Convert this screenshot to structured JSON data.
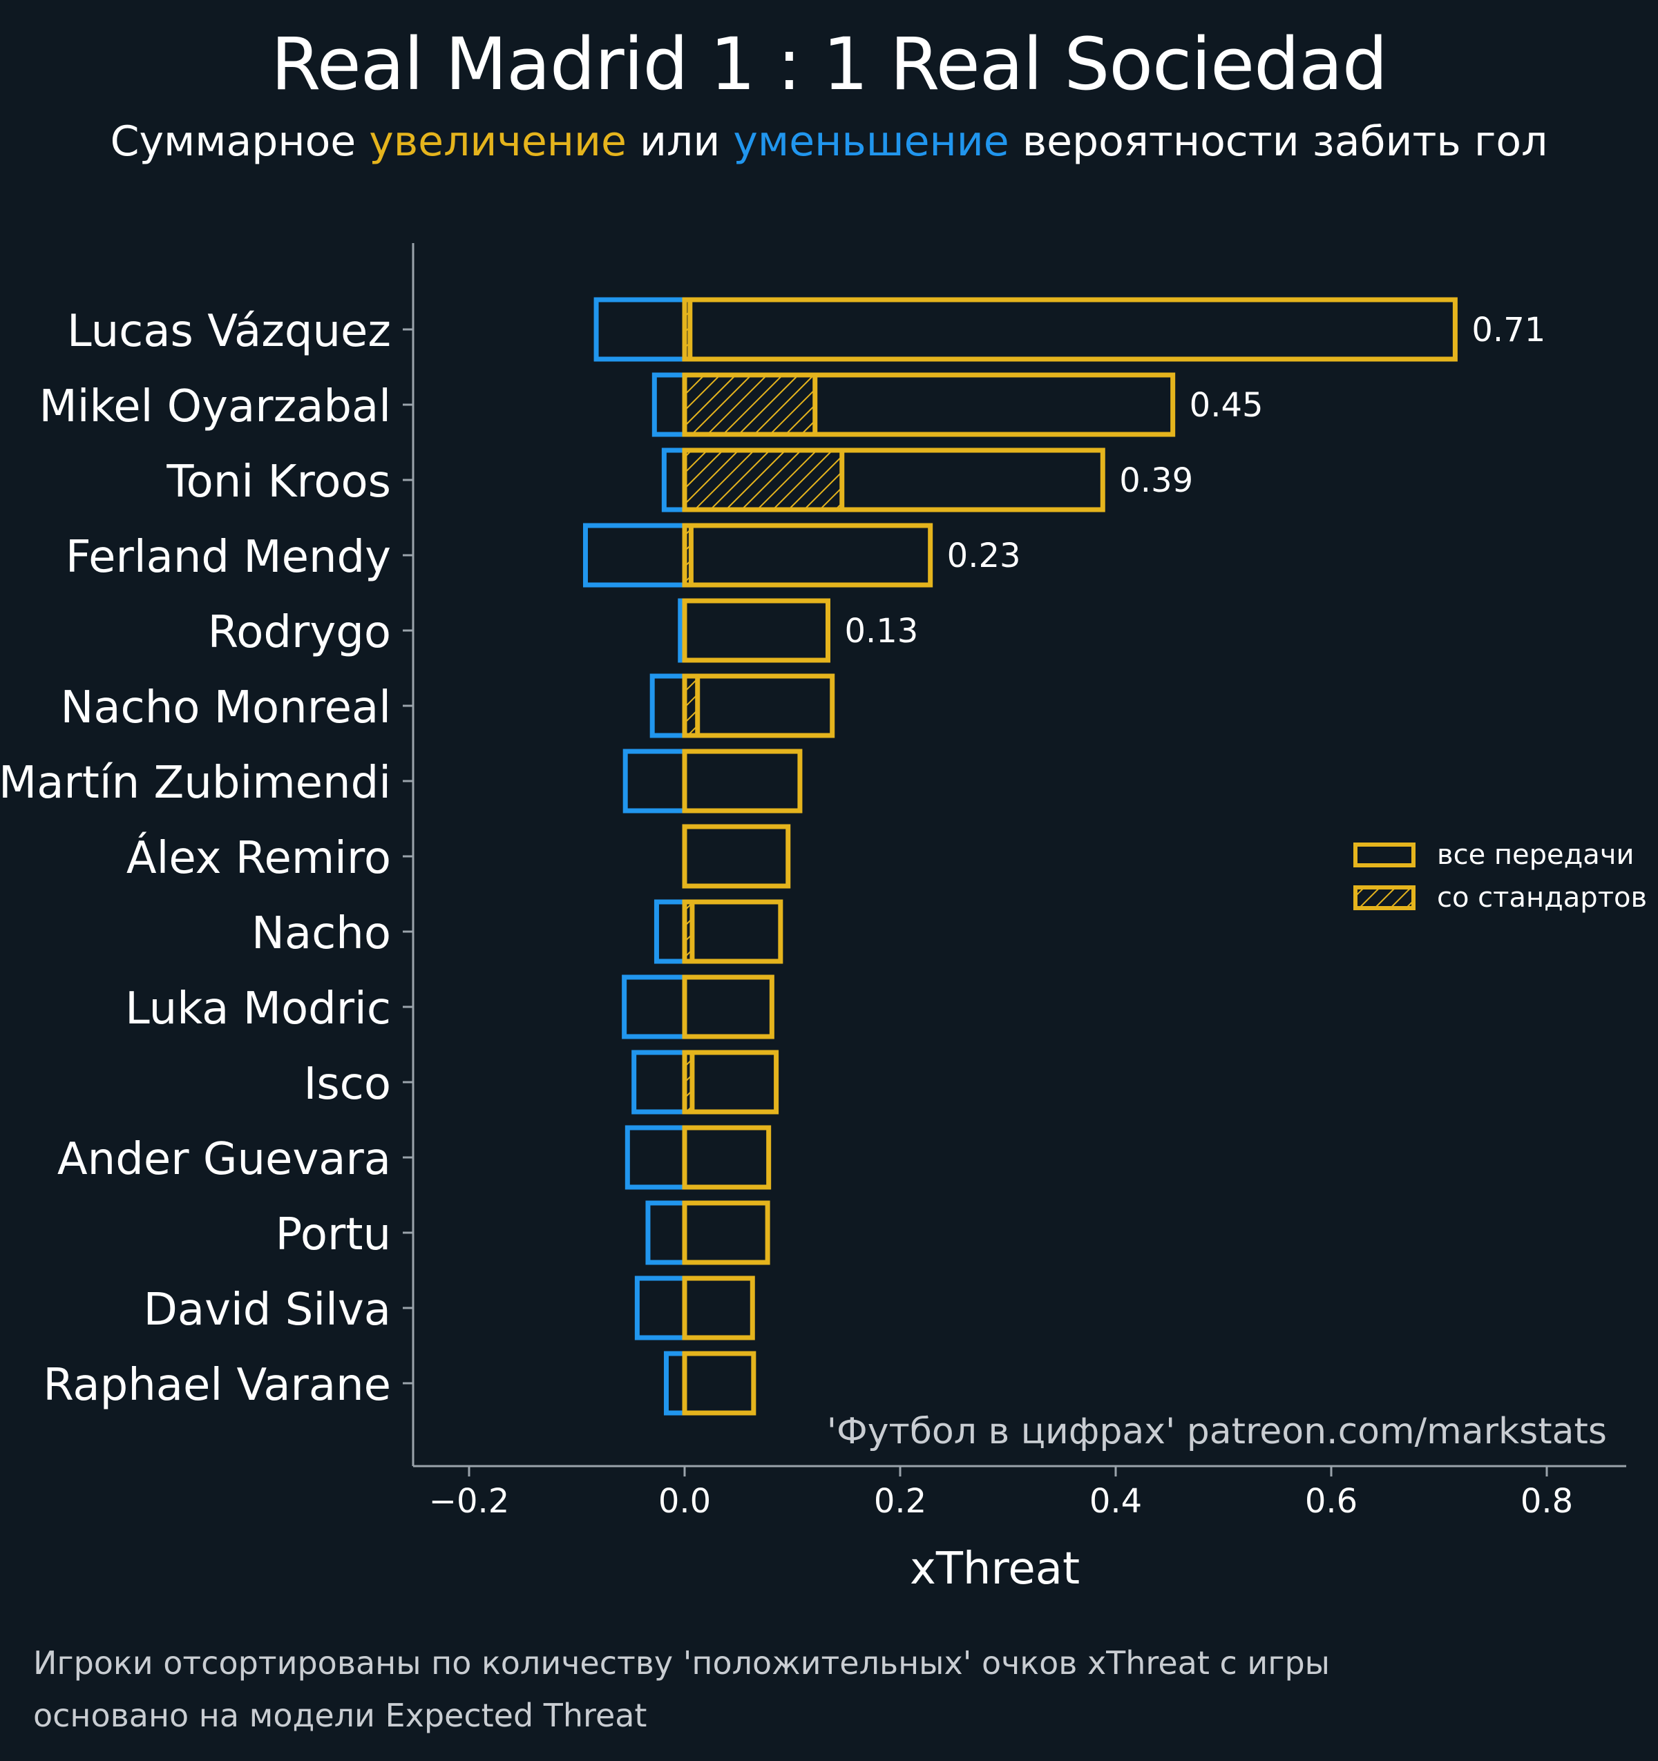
{
  "header": {
    "title": "Real Madrid 1 : 1 Real Sociedad",
    "subtitle_prefix": "Суммарное",
    "subtitle_increase": "увеличение",
    "subtitle_or": "или",
    "subtitle_decrease": "уменьшение",
    "subtitle_suffix": "вероятности забить гол"
  },
  "footer": {
    "line1": "Игроки отсортированы по количеству 'положительных' очков xThreat с игры",
    "line2": "основано на модели Expected Threat"
  },
  "colors": {
    "background": "#0e1821",
    "increase": "#e5b41d",
    "decrease": "#2196ee",
    "axis": "#9aa3ab",
    "text": "#ffffff",
    "muted_text": "#c9cdd2"
  },
  "chart_data": {
    "type": "bar",
    "orientation": "horizontal",
    "xlabel": "xThreat",
    "ylabel": "",
    "xlim": [
      -0.25,
      0.875
    ],
    "xticks": [
      -0.2,
      0.0,
      0.2,
      0.4,
      0.6,
      0.8
    ],
    "xtick_labels": [
      "−0.2",
      "0.0",
      "0.2",
      "0.4",
      "0.6",
      "0.8"
    ],
    "grid": false,
    "legend_position": "right",
    "watermark": "'Футбол в цифрах' patreon.com/markstats",
    "categories": [
      "Lucas Vázquez",
      "Mikel Oyarzabal",
      "Toni Kroos",
      "Ferland Mendy",
      "Rodrygo",
      "Nacho Monreal",
      "Martín Zubimendi",
      "Álex Remiro",
      "Nacho",
      "Luka Modric",
      "Isco",
      "Ander Guevara",
      "Portu",
      "David Silva",
      "Raphael Varane"
    ],
    "series": [
      {
        "name": "все передачи",
        "role": "positive_total",
        "values": [
          0.715,
          0.453,
          0.388,
          0.228,
          0.133,
          0.137,
          0.107,
          0.096,
          0.089,
          0.081,
          0.085,
          0.078,
          0.077,
          0.063,
          0.064
        ]
      },
      {
        "name": "со стандартов",
        "role": "positive_set_pieces",
        "values": [
          0.005,
          0.121,
          0.146,
          0.006,
          0.003,
          0.012,
          0.0,
          0.0,
          0.007,
          0.0,
          0.007,
          0.0,
          0.0,
          0.0,
          0.0
        ]
      },
      {
        "role": "negative_total",
        "values": [
          -0.082,
          -0.028,
          -0.019,
          -0.092,
          -0.004,
          -0.03,
          -0.055,
          0.0,
          -0.026,
          -0.056,
          -0.047,
          -0.053,
          -0.034,
          -0.044,
          -0.017
        ]
      }
    ],
    "value_labels": [
      "0.71",
      "0.45",
      "0.39",
      "0.23",
      "0.13",
      "",
      "",
      "",
      "",
      "",
      "",
      "",
      "",
      "",
      ""
    ],
    "legend": [
      {
        "label": "все передачи",
        "style": "outline"
      },
      {
        "label": "со стандартов",
        "style": "hatched"
      }
    ]
  }
}
